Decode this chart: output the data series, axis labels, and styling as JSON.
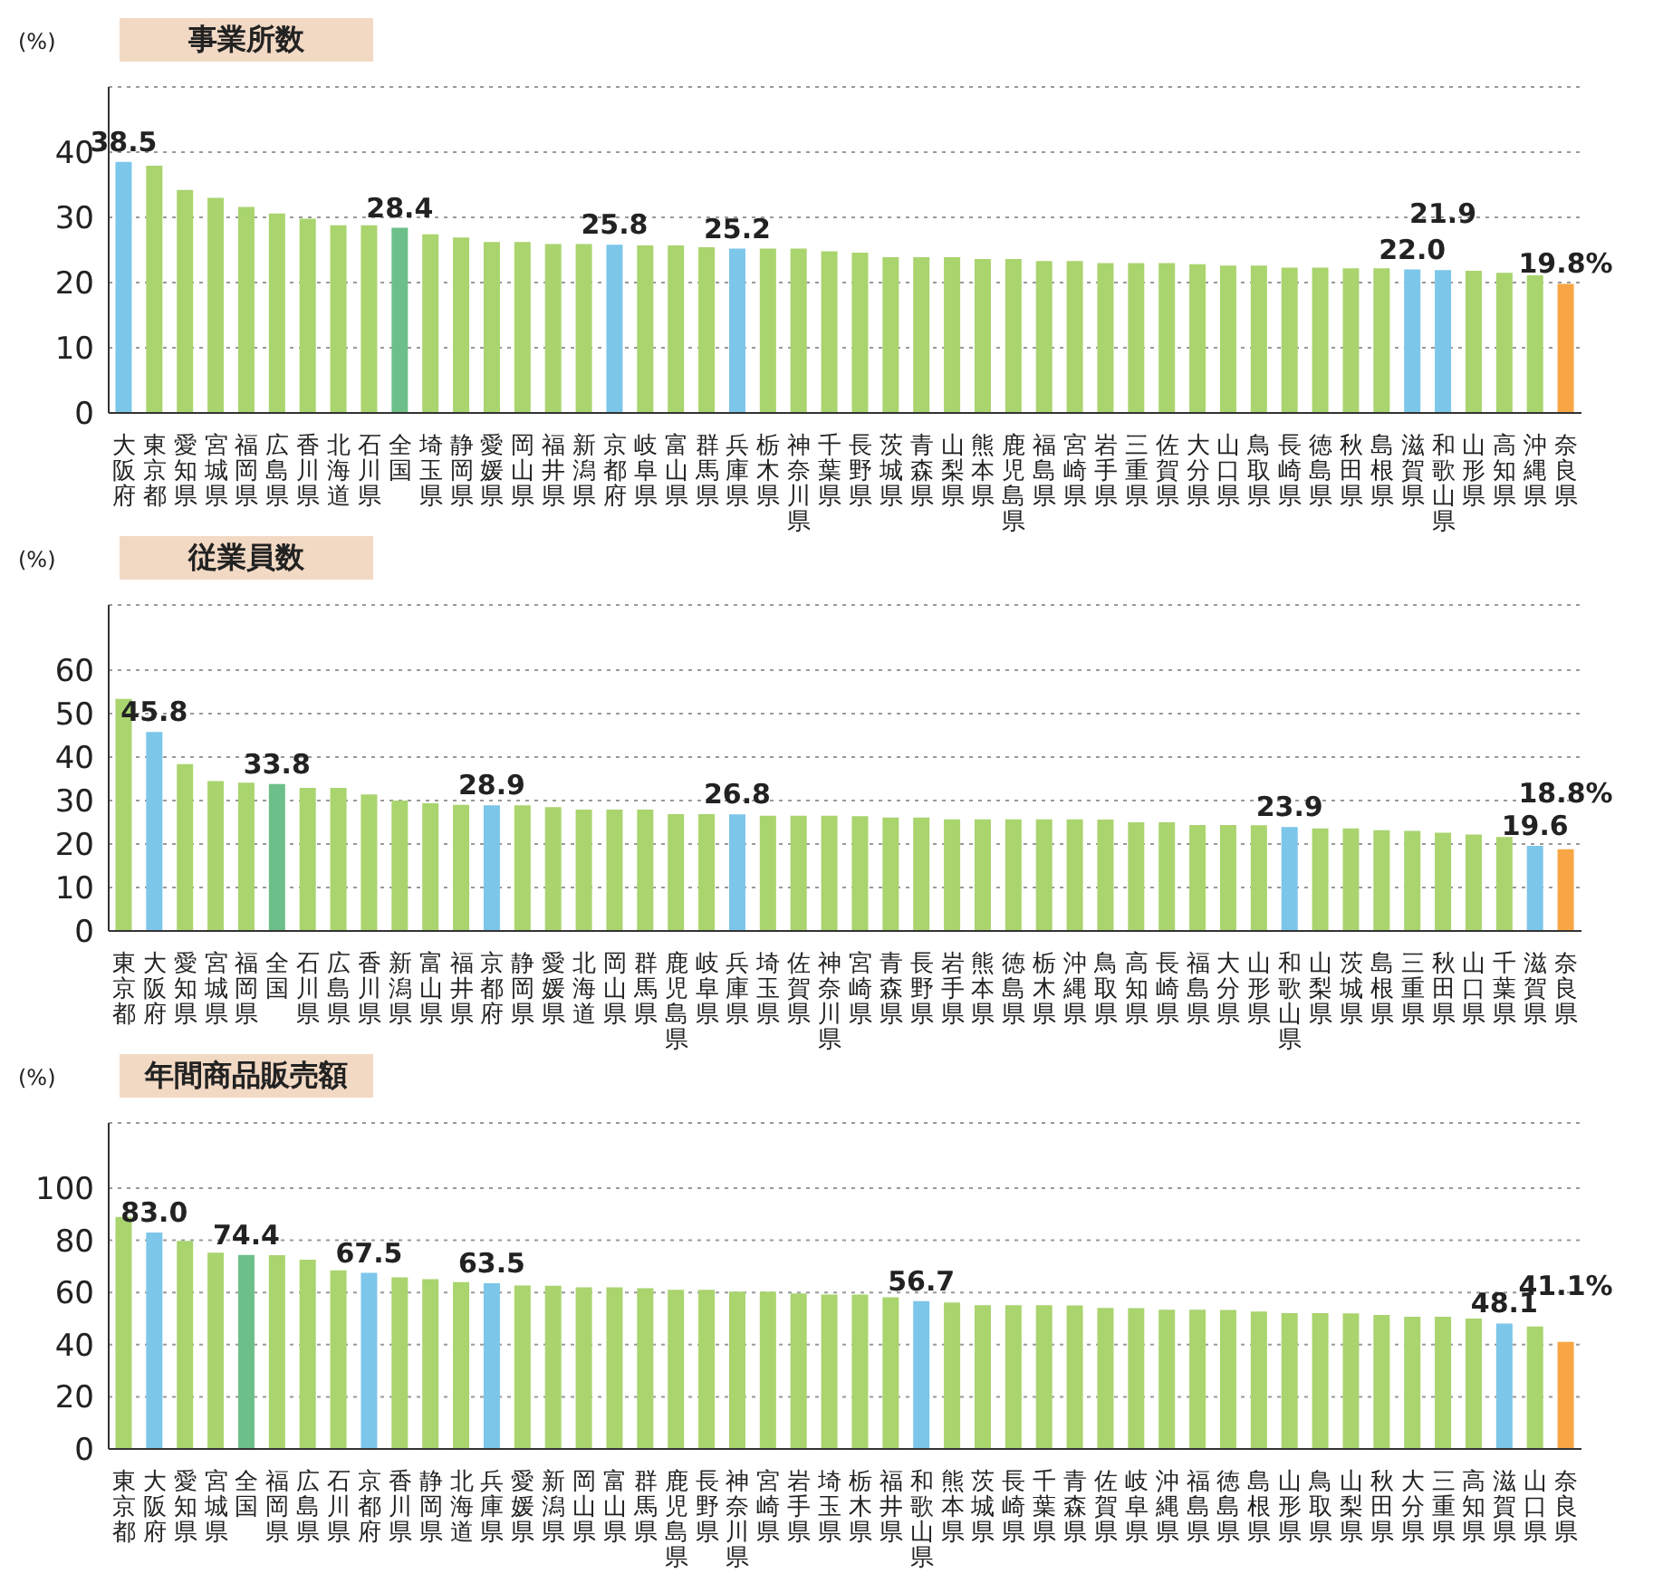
{
  "chart_data": [
    {
      "type": "bar",
      "title": "事業所数",
      "ylabel": "(%)",
      "ylim": [
        0,
        50
      ],
      "yticks": [
        0,
        10,
        20,
        30,
        40
      ],
      "grid": "y",
      "categories": [
        "大阪府",
        "東京都",
        "愛知県",
        "宮城県",
        "福岡県",
        "広島県",
        "香川県",
        "北海道",
        "石川県",
        "全国",
        "埼玉県",
        "静岡県",
        "愛媛県",
        "岡山県",
        "福井県",
        "新潟県",
        "京都府",
        "岐阜県",
        "富山県",
        "群馬県",
        "兵庫県",
        "栃木県",
        "神奈川県",
        "千葉県",
        "長野県",
        "茨城県",
        "青森県",
        "山梨県",
        "熊本県",
        "鹿児島県",
        "福島県",
        "宮崎県",
        "岩手県",
        "三重県",
        "佐賀県",
        "大分県",
        "山口県",
        "鳥取県",
        "長崎県",
        "徳島県",
        "秋田県",
        "島根県",
        "滋賀県",
        "和歌山県",
        "山形県",
        "高知県",
        "沖縄県",
        "奈良県"
      ],
      "values": [
        38.5,
        37.9,
        34.2,
        33.0,
        31.6,
        30.6,
        29.8,
        28.8,
        28.8,
        28.4,
        27.4,
        26.9,
        26.2,
        26.2,
        25.9,
        25.9,
        25.8,
        25.7,
        25.7,
        25.4,
        25.2,
        25.2,
        25.2,
        24.8,
        24.6,
        23.9,
        23.9,
        23.9,
        23.6,
        23.6,
        23.3,
        23.3,
        23.0,
        23.0,
        23.0,
        22.8,
        22.6,
        22.6,
        22.3,
        22.3,
        22.2,
        22.2,
        22.0,
        21.9,
        21.8,
        21.5,
        21.1,
        19.8
      ],
      "colors": [
        "#7cc6ea",
        "#a9d46e",
        "#a9d46e",
        "#a9d46e",
        "#a9d46e",
        "#a9d46e",
        "#a9d46e",
        "#a9d46e",
        "#a9d46e",
        "#6dbf8a",
        "#a9d46e",
        "#a9d46e",
        "#a9d46e",
        "#a9d46e",
        "#a9d46e",
        "#a9d46e",
        "#7cc6ea",
        "#a9d46e",
        "#a9d46e",
        "#a9d46e",
        "#7cc6ea",
        "#a9d46e",
        "#a9d46e",
        "#a9d46e",
        "#a9d46e",
        "#a9d46e",
        "#a9d46e",
        "#a9d46e",
        "#a9d46e",
        "#a9d46e",
        "#a9d46e",
        "#a9d46e",
        "#a9d46e",
        "#a9d46e",
        "#a9d46e",
        "#a9d46e",
        "#a9d46e",
        "#a9d46e",
        "#a9d46e",
        "#a9d46e",
        "#a9d46e",
        "#a9d46e",
        "#7cc6ea",
        "#7cc6ea",
        "#a9d46e",
        "#a9d46e",
        "#a9d46e",
        "#f8a645"
      ],
      "value_labels": [
        "38.5",
        null,
        null,
        null,
        null,
        null,
        null,
        null,
        null,
        "28.4",
        null,
        null,
        null,
        null,
        null,
        null,
        "25.8",
        null,
        null,
        null,
        "25.2",
        null,
        null,
        null,
        null,
        null,
        null,
        null,
        null,
        null,
        null,
        null,
        null,
        null,
        null,
        null,
        null,
        null,
        null,
        null,
        null,
        null,
        "22.0",
        "21.9",
        null,
        null,
        null,
        "19.8%"
      ]
    },
    {
      "type": "bar",
      "title": "従業員数",
      "ylabel": "(%)",
      "ylim": [
        0,
        75
      ],
      "yticks": [
        0,
        10,
        20,
        30,
        40,
        50,
        60
      ],
      "grid": "y",
      "categories": [
        "東京都",
        "大阪府",
        "愛知県",
        "宮城県",
        "福岡県",
        "全国",
        "石川県",
        "広島県",
        "香川県",
        "新潟県",
        "富山県",
        "福井県",
        "京都府",
        "静岡県",
        "愛媛県",
        "北海道",
        "岡山県",
        "群馬県",
        "鹿児島県",
        "岐阜県",
        "兵庫県",
        "埼玉県",
        "佐賀県",
        "神奈川県",
        "宮崎県",
        "青森県",
        "長野県",
        "岩手県",
        "熊本県",
        "徳島県",
        "栃木県",
        "沖縄県",
        "鳥取県",
        "高知県",
        "長崎県",
        "福島県",
        "大分県",
        "山形県",
        "和歌山県",
        "山梨県",
        "茨城県",
        "島根県",
        "三重県",
        "秋田県",
        "山口県",
        "千葉県",
        "滋賀県",
        "奈良県"
      ],
      "values": [
        53.4,
        45.8,
        38.4,
        34.5,
        34.1,
        33.8,
        32.9,
        32.9,
        31.4,
        30.0,
        29.4,
        29.0,
        28.9,
        28.9,
        28.5,
        27.9,
        27.9,
        27.9,
        26.9,
        26.9,
        26.8,
        26.5,
        26.5,
        26.5,
        26.4,
        26.1,
        26.1,
        25.7,
        25.7,
        25.7,
        25.7,
        25.7,
        25.6,
        25.0,
        25.0,
        24.4,
        24.4,
        24.3,
        23.9,
        23.6,
        23.6,
        23.2,
        23.0,
        22.6,
        22.2,
        21.6,
        19.6,
        18.8
      ],
      "colors": [
        "#a9d46e",
        "#7cc6ea",
        "#a9d46e",
        "#a9d46e",
        "#a9d46e",
        "#6dbf8a",
        "#a9d46e",
        "#a9d46e",
        "#a9d46e",
        "#a9d46e",
        "#a9d46e",
        "#a9d46e",
        "#7cc6ea",
        "#a9d46e",
        "#a9d46e",
        "#a9d46e",
        "#a9d46e",
        "#a9d46e",
        "#a9d46e",
        "#a9d46e",
        "#7cc6ea",
        "#a9d46e",
        "#a9d46e",
        "#a9d46e",
        "#a9d46e",
        "#a9d46e",
        "#a9d46e",
        "#a9d46e",
        "#a9d46e",
        "#a9d46e",
        "#a9d46e",
        "#a9d46e",
        "#a9d46e",
        "#a9d46e",
        "#a9d46e",
        "#a9d46e",
        "#a9d46e",
        "#a9d46e",
        "#7cc6ea",
        "#a9d46e",
        "#a9d46e",
        "#a9d46e",
        "#a9d46e",
        "#a9d46e",
        "#a9d46e",
        "#a9d46e",
        "#7cc6ea",
        "#f8a645"
      ],
      "value_labels": [
        null,
        "45.8",
        null,
        null,
        null,
        "33.8",
        null,
        null,
        null,
        null,
        null,
        null,
        "28.9",
        null,
        null,
        null,
        null,
        null,
        null,
        null,
        "26.8",
        null,
        null,
        null,
        null,
        null,
        null,
        null,
        null,
        null,
        null,
        null,
        null,
        null,
        null,
        null,
        null,
        null,
        "23.9",
        null,
        null,
        null,
        null,
        null,
        null,
        null,
        "19.6",
        "18.8%"
      ]
    },
    {
      "type": "bar",
      "title": "年間商品販売額",
      "ylabel": "(%)",
      "ylim": [
        0,
        125
      ],
      "yticks": [
        0,
        20,
        40,
        60,
        80,
        100
      ],
      "grid": "y",
      "categories": [
        "東京都",
        "大阪府",
        "愛知県",
        "宮城県",
        "全国",
        "福岡県",
        "広島県",
        "石川県",
        "京都府",
        "香川県",
        "静岡県",
        "北海道",
        "兵庫県",
        "愛媛県",
        "新潟県",
        "岡山県",
        "富山県",
        "群馬県",
        "鹿児島県",
        "長野県",
        "神奈川県",
        "宮崎県",
        "岩手県",
        "埼玉県",
        "栃木県",
        "福井県",
        "和歌山県",
        "熊本県",
        "茨城県",
        "長崎県",
        "千葉県",
        "青森県",
        "佐賀県",
        "岐阜県",
        "沖縄県",
        "福島県",
        "徳島県",
        "島根県",
        "山形県",
        "鳥取県",
        "山梨県",
        "秋田県",
        "大分県",
        "三重県",
        "高知県",
        "滋賀県",
        "山口県",
        "奈良県"
      ],
      "values": [
        89.0,
        83.0,
        79.8,
        75.3,
        74.4,
        74.3,
        72.6,
        68.5,
        67.5,
        65.8,
        65.1,
        64.0,
        63.5,
        62.7,
        62.6,
        62.0,
        62.0,
        61.6,
        61.0,
        61.0,
        60.3,
        60.3,
        59.6,
        59.2,
        59.2,
        58.2,
        56.7,
        56.2,
        55.1,
        55.1,
        55.1,
        55.0,
        54.1,
        54.0,
        53.4,
        53.4,
        53.3,
        52.7,
        52.1,
        52.1,
        52.0,
        51.4,
        50.7,
        50.7,
        50.0,
        48.1,
        47.0,
        41.1
      ],
      "colors": [
        "#a9d46e",
        "#7cc6ea",
        "#a9d46e",
        "#a9d46e",
        "#6dbf8a",
        "#a9d46e",
        "#a9d46e",
        "#a9d46e",
        "#7cc6ea",
        "#a9d46e",
        "#a9d46e",
        "#a9d46e",
        "#7cc6ea",
        "#a9d46e",
        "#a9d46e",
        "#a9d46e",
        "#a9d46e",
        "#a9d46e",
        "#a9d46e",
        "#a9d46e",
        "#a9d46e",
        "#a9d46e",
        "#a9d46e",
        "#a9d46e",
        "#a9d46e",
        "#a9d46e",
        "#7cc6ea",
        "#a9d46e",
        "#a9d46e",
        "#a9d46e",
        "#a9d46e",
        "#a9d46e",
        "#a9d46e",
        "#a9d46e",
        "#a9d46e",
        "#a9d46e",
        "#a9d46e",
        "#a9d46e",
        "#a9d46e",
        "#a9d46e",
        "#a9d46e",
        "#a9d46e",
        "#a9d46e",
        "#a9d46e",
        "#a9d46e",
        "#7cc6ea",
        "#a9d46e",
        "#f8a645"
      ],
      "value_labels": [
        null,
        "83.0",
        null,
        null,
        "74.4",
        null,
        null,
        null,
        "67.5",
        null,
        null,
        null,
        "63.5",
        null,
        null,
        null,
        null,
        null,
        null,
        null,
        null,
        null,
        null,
        null,
        null,
        null,
        "56.7",
        null,
        null,
        null,
        null,
        null,
        null,
        null,
        null,
        null,
        null,
        null,
        null,
        null,
        null,
        null,
        null,
        null,
        null,
        "48.1",
        null,
        "41.1%"
      ]
    }
  ]
}
